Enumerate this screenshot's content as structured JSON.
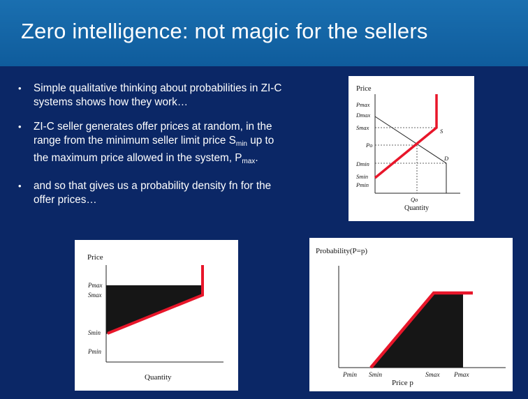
{
  "slide": {
    "title": "Zero intelligence: not magic for the sellers",
    "bullets": [
      {
        "text": "Simple qualitative thinking about probabilities in ZI-C systems shows how they work…"
      },
      {
        "pre": "ZI-C seller generates offer prices at random, in the range from the minimum seller limit price S",
        "sub1": "min",
        "mid": " up to the maximum price allowed in the system, P",
        "sub2": "max",
        "post": "."
      },
      {
        "text": "and so that gives us a probability density fn for the offer prices…"
      }
    ],
    "bullet_glyph": "•"
  },
  "diagram_supply_demand": {
    "ylabel": "Price",
    "xlabel": "Quantity",
    "y_ticks": [
      "Pmax",
      "Dmax",
      "Smax",
      "Po",
      "Dmin",
      "Smin",
      "Pmin"
    ],
    "x_tick": "Qo",
    "supply_label": "S",
    "demand_label": "D"
  },
  "diagram_seller_range": {
    "ylabel": "Price",
    "xlabel": "Quantity",
    "y_ticks": [
      "Pmax",
      "Smax",
      "Smin",
      "Pmin"
    ]
  },
  "diagram_density": {
    "ylabel": "Probability(P=p)",
    "xlabel": "Price p",
    "x_ticks": [
      "Pmin",
      "Smin",
      "Smax",
      "Pmax"
    ]
  },
  "colors": {
    "accent_red": "#e8162a",
    "fill_dark": "#161616",
    "title_bar": "#1465a6",
    "background": "#0b2766"
  }
}
